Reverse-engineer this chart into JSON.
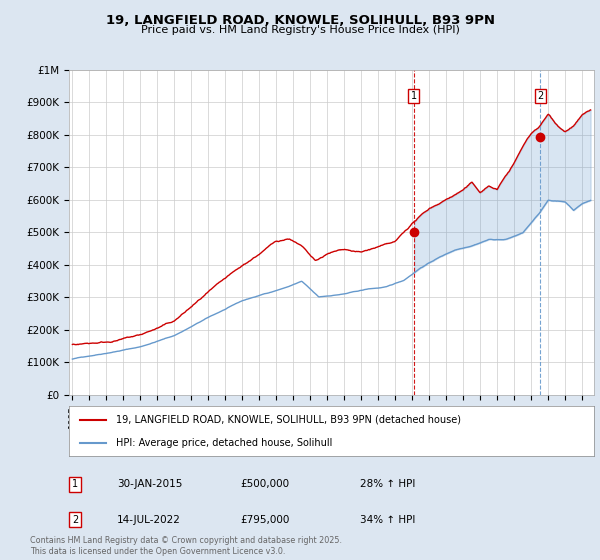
{
  "title_line1": "19, LANGFIELD ROAD, KNOWLE, SOLIHULL, B93 9PN",
  "title_line2": "Price paid vs. HM Land Registry's House Price Index (HPI)",
  "legend_red": "19, LANGFIELD ROAD, KNOWLE, SOLIHULL, B93 9PN (detached house)",
  "legend_blue": "HPI: Average price, detached house, Solihull",
  "annotation1_label": "1",
  "annotation1_date": "30-JAN-2015",
  "annotation1_price": "£500,000",
  "annotation1_hpi": "28% ↑ HPI",
  "annotation2_label": "2",
  "annotation2_date": "14-JUL-2022",
  "annotation2_price": "£795,000",
  "annotation2_hpi": "34% ↑ HPI",
  "footer": "Contains HM Land Registry data © Crown copyright and database right 2025.\nThis data is licensed under the Open Government Licence v3.0.",
  "red_color": "#cc0000",
  "blue_color": "#6699cc",
  "fill_color": "#dce6f1",
  "background_color": "#dce6f1",
  "plot_bg_color": "#ffffff",
  "ylim": [
    0,
    1000000
  ],
  "yticks": [
    0,
    100000,
    200000,
    300000,
    400000,
    500000,
    600000,
    700000,
    800000,
    900000,
    1000000
  ],
  "ytick_labels": [
    "£0",
    "£100K",
    "£200K",
    "£300K",
    "£400K",
    "£500K",
    "£600K",
    "£700K",
    "£800K",
    "£900K",
    "£1M"
  ],
  "sale1_x": 2015.08,
  "sale1_y": 500000,
  "sale2_x": 2022.54,
  "sale2_y": 795000,
  "xmin": 1994.8,
  "xmax": 2025.7
}
